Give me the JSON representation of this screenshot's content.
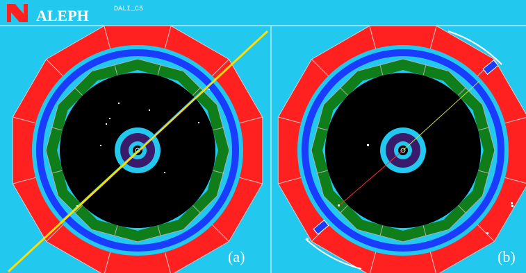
{
  "header": {
    "logo": "ALEPH",
    "program": "DALI_C5"
  },
  "panels": [
    {
      "label": "(a)"
    },
    {
      "label": "(b)"
    }
  ]
}
